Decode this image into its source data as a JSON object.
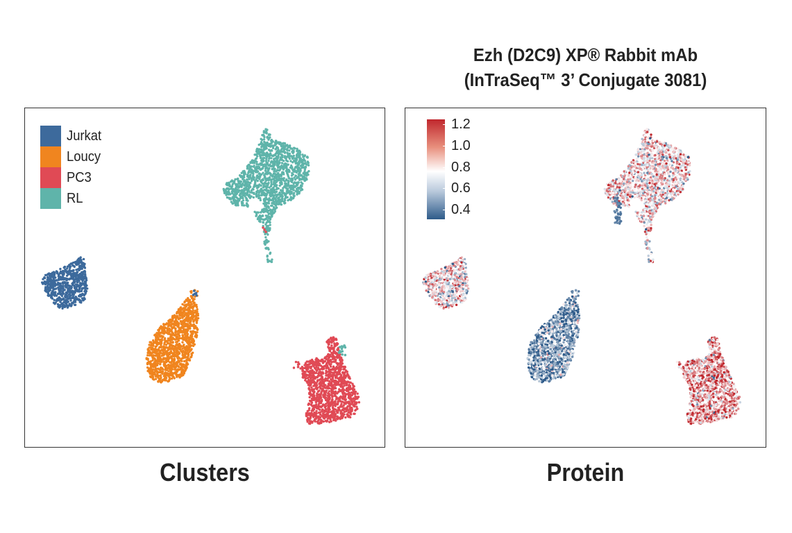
{
  "chart_data": [
    {
      "type": "scatter",
      "title": "Clusters",
      "xlabel": "",
      "ylabel": "",
      "color_by": "cluster",
      "legend_position": "top-left",
      "legend": [
        {
          "name": "Jurkat",
          "color": "#3d6a9c"
        },
        {
          "name": "Loucy",
          "color": "#f0851f"
        },
        {
          "name": "PC3",
          "color": "#e04a55"
        },
        {
          "name": "RL",
          "color": "#5fb4aa"
        }
      ],
      "series": [
        {
          "name": "RL",
          "color": "#5fb4aa",
          "region": "top-center"
        },
        {
          "name": "Jurkat",
          "color": "#3d6a9c",
          "region": "middle-left"
        },
        {
          "name": "Loucy",
          "color": "#f0851f",
          "region": "center"
        },
        {
          "name": "PC3",
          "color": "#e04a55",
          "region": "bottom-right"
        }
      ]
    },
    {
      "type": "scatter",
      "title": "Protein",
      "subtitle_lines": [
        "Ezh (D2C9) XP® Rabbit mAb",
        "(InTraSeq™ 3’ Conjugate 3081)"
      ],
      "xlabel": "",
      "ylabel": "",
      "color_by": "protein expression",
      "colorbar": {
        "position": "top-left",
        "range": [
          0.3,
          1.25
        ],
        "ticks": [
          "1.2",
          "1.0",
          "0.8",
          "0.6",
          "0.4"
        ],
        "tick_values": [
          1.2,
          1.0,
          0.8,
          0.6,
          0.4
        ],
        "low_color": "#2e5b8a",
        "mid_color": "#ffffff",
        "high_color": "#c0272d"
      },
      "cluster_mean_expression": {
        "RL": 0.85,
        "Jurkat": 0.85,
        "Loucy": 0.5,
        "PC3": 1.0
      }
    }
  ],
  "captions": {
    "left": "Clusters",
    "right": "Protein"
  },
  "right_title": {
    "line1": "Ezh (D2C9) XP® Rabbit mAb",
    "line2": "(InTraSeq™ 3’ Conjugate 3081)"
  },
  "legend": {
    "items": [
      {
        "label": "Jurkat",
        "color": "#3d6a9c"
      },
      {
        "label": "Loucy",
        "color": "#f0851f"
      },
      {
        "label": "PC3",
        "color": "#e04a55"
      },
      {
        "label": "RL",
        "color": "#5fb4aa"
      }
    ]
  },
  "colorbar": {
    "ticks": [
      "1.2",
      "1.0",
      "0.8",
      "0.6",
      "0.4"
    ]
  },
  "colors": {
    "border": "#333333",
    "text": "#222222"
  }
}
